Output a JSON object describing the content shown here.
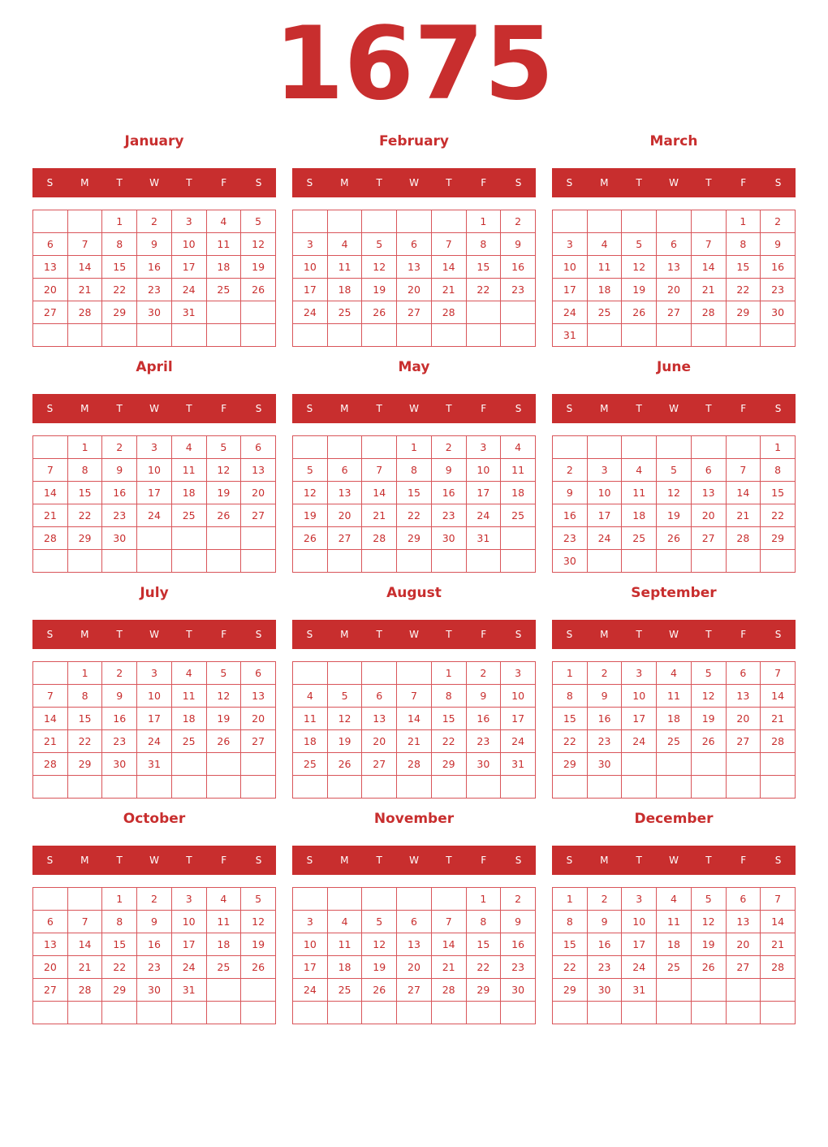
{
  "year": "1675",
  "colors": {
    "accent": "#c82e2e",
    "header_text": "#ffffff"
  },
  "weekdays": [
    "S",
    "M",
    "T",
    "W",
    "T",
    "F",
    "S"
  ],
  "months": [
    {
      "name": "January",
      "first_weekday": 2,
      "days": 31
    },
    {
      "name": "February",
      "first_weekday": 5,
      "days": 28
    },
    {
      "name": "March",
      "first_weekday": 5,
      "days": 31
    },
    {
      "name": "April",
      "first_weekday": 1,
      "days": 30
    },
    {
      "name": "May",
      "first_weekday": 3,
      "days": 31
    },
    {
      "name": "June",
      "first_weekday": 6,
      "days": 30
    },
    {
      "name": "July",
      "first_weekday": 1,
      "days": 31
    },
    {
      "name": "August",
      "first_weekday": 4,
      "days": 31
    },
    {
      "name": "September",
      "first_weekday": 0,
      "days": 30
    },
    {
      "name": "October",
      "first_weekday": 2,
      "days": 31
    },
    {
      "name": "November",
      "first_weekday": 5,
      "days": 30
    },
    {
      "name": "December",
      "first_weekday": 0,
      "days": 31
    }
  ]
}
